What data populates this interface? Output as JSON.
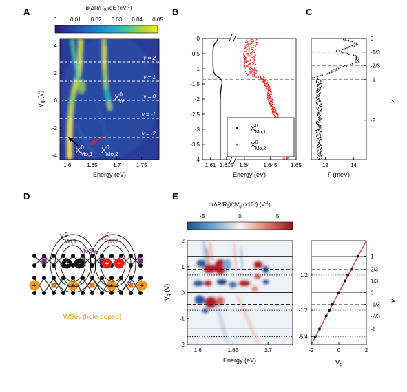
{
  "colors": {
    "axis": "#000000",
    "red_series": "#e8201c",
    "black_series": "#111111",
    "dashed_lines": "#888888",
    "fit_line": "#e23b2e",
    "mose2_label": "#7a2a8c",
    "wse2_label": "#e8961e",
    "hole": "#f2961e",
    "electron_black": "#111111",
    "electron_red": "#e8201c",
    "metal_mo": "#7a2a8c",
    "metal_w": "#e8701c"
  },
  "panel_letters": {
    "A": "A",
    "B": "B",
    "C": "C",
    "D": "D",
    "E": "E"
  },
  "panel_A": {
    "colorbar_title": "d(ΔR/R",
    "colorbar_title_sub": "0",
    "colorbar_title_end": ")/dE (eV",
    "colorbar_title_sup": "-1",
    "colorbar_title_close": ")",
    "colorbar_ticks": [
      "0",
      "0.01",
      "0.02",
      "0.03",
      "0.04",
      "0.05"
    ],
    "colorbar_range": [
      0,
      0.05
    ],
    "xlabel": "Energy (eV)",
    "ylabel_main": "V",
    "ylabel_sub": "g",
    "ylabel_unit": " (V)",
    "xticks": [
      "1.6",
      "1.65",
      "1.7",
      "1.75"
    ],
    "yticks": [
      "4",
      "2",
      "0",
      "-2",
      "-4"
    ],
    "xlim": [
      1.585,
      1.785
    ],
    "ylim": [
      -4.3,
      4.5
    ],
    "filling_labels": [
      {
        "text": "ν = 2",
        "vg": 2.8
      },
      {
        "text": "ν = 1",
        "vg": 1.4
      },
      {
        "text": "ν = 0",
        "vg": 0
      },
      {
        "text": "ν = -1",
        "vg": -1.3
      },
      {
        "text": "ν = -2",
        "vg": -2.7
      }
    ],
    "xw_label": "X",
    "xw_sup": "0",
    "xw_sub": "W",
    "xmo1_label": "X",
    "xmo1_sup": "0",
    "xmo1_sub": "Mo,1",
    "xmo2_label": "X",
    "xmo2_sup": "0",
    "xmo2_sub": "Mo,2"
  },
  "panel_B": {
    "xlabel": "Energy (eV)",
    "xticks": [
      "1.61",
      "1.615",
      "1.64",
      "1.645",
      "1.65"
    ],
    "yticks": [
      "0",
      "-0.5",
      "-1",
      "-1.5",
      "-2",
      "-2.5",
      "-3",
      "-3.5",
      "-4"
    ],
    "ylim": [
      -4,
      0
    ],
    "dashed_vg": -1.35,
    "legend": [
      {
        "label": "X",
        "sup": "0",
        "sub": "Mo,1",
        "color": "#111111"
      },
      {
        "label": "X",
        "sup": "0",
        "sub": "Mo,2",
        "color": "#e8201c"
      }
    ],
    "series_black": {
      "name": "X0 Mo,1",
      "vg": [
        0,
        -0.1,
        -0.2,
        -0.3,
        -0.4,
        -0.5,
        -0.6,
        -0.7,
        -0.8,
        -0.9,
        -1.0,
        -1.1,
        -1.2,
        -1.3,
        -1.4,
        -1.5,
        -1.6,
        -1.8,
        -2.0,
        -2.2,
        -2.5,
        -3.0,
        -3.5,
        -4.0
      ],
      "energy": [
        1.6125,
        1.6118,
        1.6112,
        1.6109,
        1.6108,
        1.6108,
        1.6108,
        1.6108,
        1.6108,
        1.6108,
        1.6109,
        1.611,
        1.6115,
        1.6128,
        1.6136,
        1.6136,
        1.6134,
        1.6132,
        1.6131,
        1.6131,
        1.6131,
        1.6131,
        1.6131,
        1.6131
      ]
    },
    "series_red": {
      "name": "X0 Mo,2",
      "vg": [
        0,
        -0.2,
        -0.4,
        -0.6,
        -0.8,
        -1.0,
        -1.2,
        -1.3,
        -1.4,
        -1.5,
        -1.7,
        -2.0,
        -2.3,
        -2.6,
        -3.0,
        -3.4,
        -3.8,
        -4.0
      ],
      "energy": [
        1.6415,
        1.6412,
        1.641,
        1.641,
        1.6412,
        1.641,
        1.6415,
        1.6432,
        1.644,
        1.6442,
        1.6447,
        1.645,
        1.6456,
        1.6462,
        1.6468,
        1.6474,
        1.6478,
        1.648
      ]
    }
  },
  "panel_C": {
    "xlabel": "Γ (meV)",
    "xticks": [
      "12",
      "14"
    ],
    "xlim": [
      11,
      14.9
    ],
    "nu_label": "ν",
    "nu_ticks": [
      {
        "text": "0",
        "vg": 0
      },
      {
        "text": "-1/3",
        "vg": -0.45
      },
      {
        "text": "-2/3",
        "vg": -0.9
      },
      {
        "text": "-1",
        "vg": -1.35
      },
      {
        "text": "-2",
        "vg": -2.7
      }
    ],
    "dashed_vg": [
      -0.45,
      -0.9,
      -1.35
    ],
    "series": {
      "vg": [
        0,
        -0.1,
        -0.2,
        -0.3,
        -0.4,
        -0.5,
        -0.6,
        -0.7,
        -0.8,
        -0.9,
        -1.0,
        -1.1,
        -1.2,
        -1.3,
        -1.4,
        -1.5,
        -1.7,
        -2.0,
        -2.5,
        -3.0,
        -3.5,
        -4.0
      ],
      "gamma": [
        13.2,
        13.8,
        14.3,
        13.6,
        12.8,
        13.5,
        14.3,
        14.2,
        14.3,
        13.4,
        12.8,
        12.5,
        11.8,
        11.2,
        11.5,
        11.6,
        11.5,
        11.5,
        11.6,
        11.5,
        11.6,
        11.6
      ]
    }
  },
  "panel_D": {
    "xmo1": {
      "label": "X",
      "sup": "0",
      "sub": "Mo,1"
    },
    "xmo2": {
      "label": "X",
      "sup": "0",
      "sub": "Mo,2"
    },
    "mose2_label": "MoSe",
    "mose2_sub": "2",
    "wse2_label": "WSe",
    "wse2_sub": "2",
    "wse2_note": " (hole doped)"
  },
  "panel_E": {
    "colorbar_title": "d(ΔR/R",
    "colorbar_title_sub": "0",
    "colorbar_title_mid": ")/dV",
    "colorbar_title_sub2": "g",
    "colorbar_title_end": " (x10",
    "colorbar_title_sup": "3",
    "colorbar_title_close": ") (V",
    "colorbar_title_sup2": "-1",
    "colorbar_title_final": ")",
    "colorbar_ticks": [
      "-5",
      "0",
      "5"
    ],
    "colorbar_range": [
      -7,
      7
    ],
    "xlabel": "Energy (eV)",
    "ylabel_main": "V",
    "ylabel_sub": "g",
    "ylabel_unit": " (V)",
    "xticks": [
      "1.6",
      "1.65",
      "1.7"
    ],
    "yticks": [
      "2",
      "1",
      "0",
      "-1",
      "-2"
    ],
    "ylim": [
      -2,
      2
    ],
    "solid_vg": [
      1.4,
      0,
      -1.4
    ],
    "dashed_vg": [
      0.9,
      0.45,
      -0.45,
      -0.9
    ],
    "dotted_vg": [
      0.68,
      -0.68,
      -1.7
    ],
    "fit_panel": {
      "xlabel_main": "V",
      "xlabel_sub": "g",
      "xticks": [
        "-2",
        "0",
        "2"
      ],
      "xlim": [
        -2,
        2
      ],
      "nu_label": "ν",
      "nu_right": [
        {
          "text": "1",
          "vg": 1.4
        },
        {
          "text": "2/3",
          "vg": 0.9
        },
        {
          "text": "1/3",
          "vg": 0.45
        },
        {
          "text": "0",
          "vg": 0
        },
        {
          "text": "-1/3",
          "vg": -0.45
        },
        {
          "text": "-2/3",
          "vg": -0.9
        },
        {
          "text": "-1",
          "vg": -1.4
        }
      ],
      "nu_left": [
        {
          "text": "1/2",
          "vg": 0.68
        },
        {
          "text": "-1/2",
          "vg": -0.68
        },
        {
          "text": "-5/4",
          "vg": -1.7
        }
      ],
      "points": {
        "vg": [
          1.4,
          0.9,
          0.68,
          0.45,
          0,
          -0.45,
          -0.68,
          -0.9,
          -1.4,
          -1.7
        ],
        "x": [
          1.38,
          0.92,
          0.66,
          0.44,
          0.0,
          -0.46,
          -0.7,
          -0.92,
          -1.4,
          -1.72
        ]
      },
      "fit": {
        "x": [
          -2,
          2
        ],
        "vg": [
          -2.04,
          2.04
        ]
      }
    }
  }
}
